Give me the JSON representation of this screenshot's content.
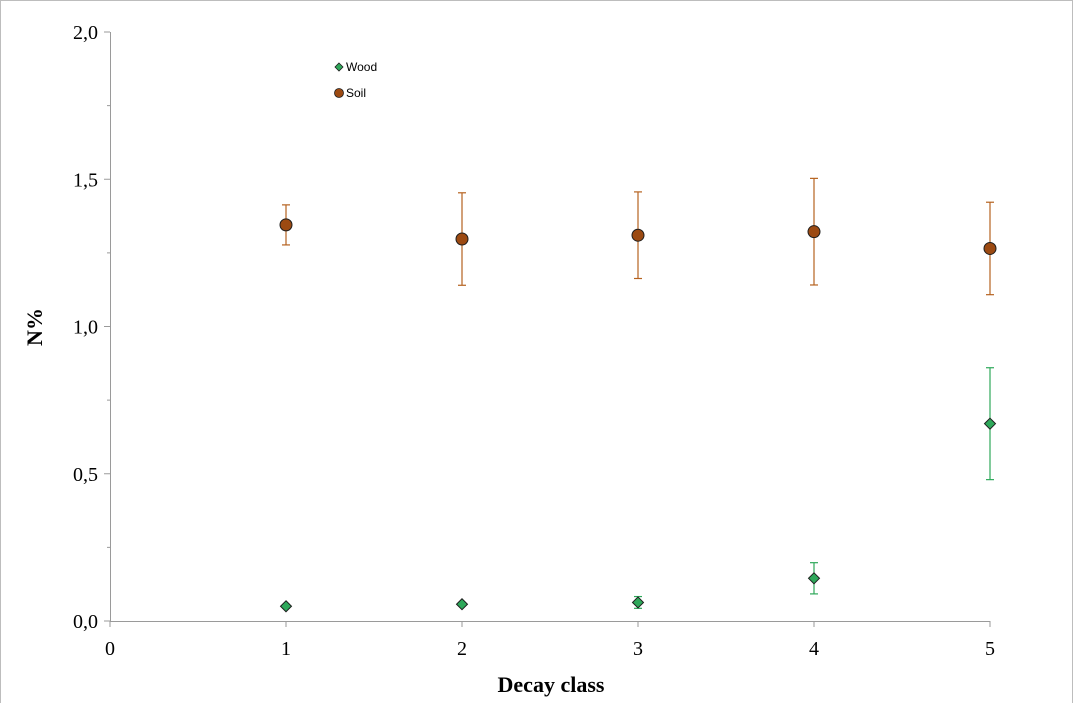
{
  "chart_data": {
    "type": "scatter",
    "xlabel": "Decay class",
    "ylabel": "N%",
    "xlim": [
      0,
      5
    ],
    "ylim": [
      0,
      2
    ],
    "x_ticks": [
      "0",
      "1",
      "2",
      "3",
      "4",
      "5"
    ],
    "y_ticks": [
      "0,0",
      "0,5",
      "1,0",
      "1,5",
      "2,0"
    ],
    "legend": {
      "placement": "top-left",
      "entries": [
        "Wood",
        "Soil"
      ]
    },
    "grid": false,
    "series": [
      {
        "name": "Wood",
        "marker": "diamond",
        "color": "#2ea85a",
        "error_color": "#2ea85a",
        "points": [
          {
            "x": 1,
            "y": 0.05,
            "err": 0.006
          },
          {
            "x": 2,
            "y": 0.057,
            "err": 0.004
          },
          {
            "x": 3,
            "y": 0.063,
            "err": 0.02
          },
          {
            "x": 4,
            "y": 0.145,
            "err": 0.053
          },
          {
            "x": 5,
            "y": 0.67,
            "err": 0.19
          }
        ]
      },
      {
        "name": "Soil",
        "marker": "circle",
        "color": "#9c4a12",
        "error_color": "#b5621f",
        "points": [
          {
            "x": 1,
            "y": 1.345,
            "err": 0.068
          },
          {
            "x": 2,
            "y": 1.297,
            "err": 0.157
          },
          {
            "x": 3,
            "y": 1.31,
            "err": 0.147
          },
          {
            "x": 4,
            "y": 1.322,
            "err": 0.181
          },
          {
            "x": 5,
            "y": 1.265,
            "err": 0.157
          }
        ]
      }
    ]
  }
}
